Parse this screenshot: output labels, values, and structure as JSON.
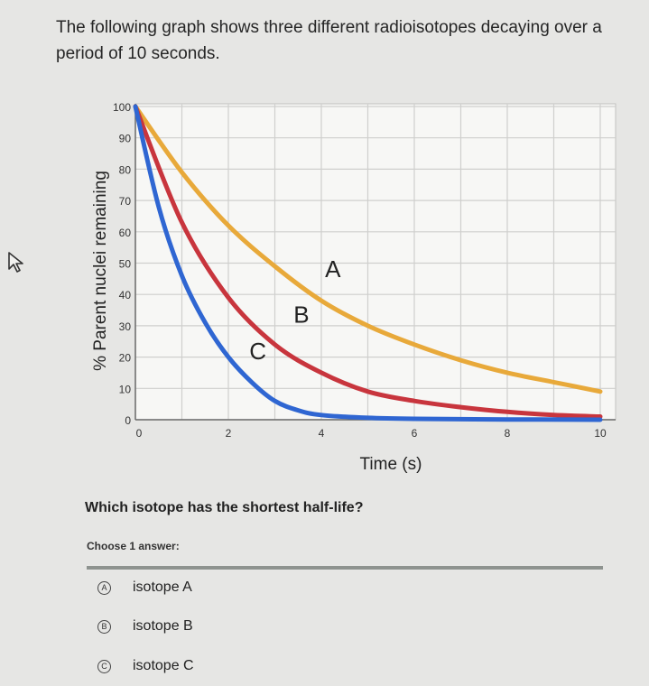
{
  "intro_text": "The following graph shows three different radioisotopes decaying over a period of 10 seconds.",
  "question": "Which isotope has the shortest half-life?",
  "choose_label": "Choose 1 answer:",
  "options": [
    {
      "badge": "A",
      "label": "isotope A"
    },
    {
      "badge": "B",
      "label": "isotope B"
    },
    {
      "badge": "C",
      "label": "isotope C"
    }
  ],
  "icons": {
    "cursor": "pointer-cursor-icon"
  },
  "chart_data": {
    "type": "line",
    "xlabel": "Time (s)",
    "ylabel": "% Parent nuclei remaining",
    "xlim": [
      0,
      10
    ],
    "ylim": [
      0,
      100
    ],
    "xticks": [
      0,
      2,
      4,
      6,
      8,
      10
    ],
    "yticks": [
      0,
      10,
      20,
      30,
      40,
      50,
      60,
      70,
      80,
      90,
      100
    ],
    "grid": true,
    "series": [
      {
        "name": "A",
        "color": "#e8a93a",
        "x": [
          0,
          1,
          2,
          3,
          4,
          5,
          6,
          7,
          8,
          9,
          10
        ],
        "y": [
          100,
          79,
          62,
          49,
          38,
          30,
          24,
          19,
          15,
          12,
          9
        ]
      },
      {
        "name": "B",
        "color": "#c8353d",
        "x": [
          0,
          1,
          2,
          3,
          4,
          5,
          6,
          7,
          8,
          9,
          10
        ],
        "y": [
          100,
          63,
          39,
          24,
          15,
          9,
          6,
          4,
          2.5,
          1.5,
          1
        ]
      },
      {
        "name": "C",
        "color": "#2f66d2",
        "x": [
          0,
          0.5,
          1,
          1.5,
          2,
          2.5,
          3,
          3.5,
          4,
          5,
          6,
          8,
          10
        ],
        "y": [
          100,
          68,
          46,
          31,
          20,
          12,
          6,
          3,
          1.5,
          0.6,
          0.3,
          0.1,
          0
        ]
      }
    ]
  }
}
